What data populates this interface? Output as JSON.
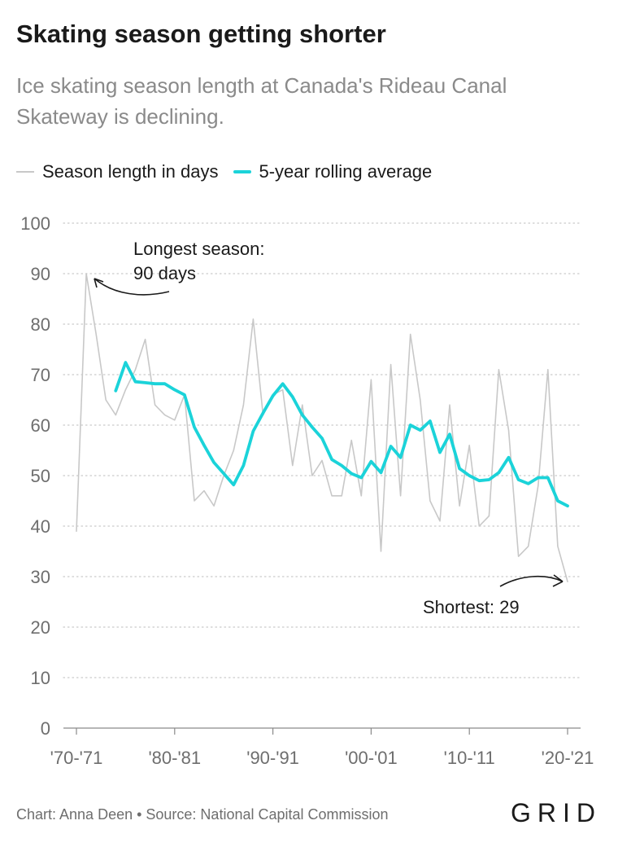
{
  "title": "Skating season getting shorter",
  "subtitle": "Ice skating season length at Canada's Rideau Canal Skateway is declining.",
  "legend": {
    "raw_label": "Season length in days",
    "avg_label": "5-year rolling average"
  },
  "annotations": {
    "longest_line1": "Longest season:",
    "longest_line2": "90 days",
    "shortest": "Shortest: 29"
  },
  "footer": "Chart: Anna Deen • Source: National Capital Commission",
  "logo": "GRID",
  "colors": {
    "raw": "#c8c8c8",
    "avg": "#1bd3d9",
    "grid": "#c9c9c9",
    "text": "#6e6e6e"
  },
  "chart_data": {
    "type": "line",
    "x_start": 1970,
    "x_tick_labels": [
      "'70-'71",
      "'80-'81",
      "'90-'91",
      "'00-'01",
      "'10-'11",
      "'20-'21"
    ],
    "x_tick_years": [
      1970,
      1980,
      1990,
      2000,
      2010,
      2020
    ],
    "ylim": [
      0,
      100
    ],
    "y_ticks": [
      0,
      10,
      20,
      30,
      40,
      50,
      60,
      70,
      80,
      90,
      100
    ],
    "grid": true,
    "legend_position": "top",
    "series": [
      {
        "name": "Season length in days",
        "values": [
          39,
          90,
          78,
          65,
          62,
          67,
          71,
          77,
          64,
          62,
          61,
          66,
          45,
          47,
          44,
          50,
          55,
          64,
          81,
          62,
          66,
          67,
          52,
          64,
          50,
          53,
          46,
          46,
          57,
          46,
          69,
          35,
          72,
          46,
          78,
          65,
          45,
          41,
          64,
          44,
          56,
          40,
          42,
          71,
          59,
          34,
          36,
          48,
          71,
          36,
          29
        ]
      },
      {
        "name": "5-year rolling average",
        "start_index": 4,
        "values": [
          66.8,
          72.4,
          68.6,
          68.4,
          68.2,
          68.2,
          67,
          66,
          59.6,
          56,
          52.6,
          50.4,
          48.2,
          52,
          58.8,
          62.4,
          65.8,
          68.2,
          65.6,
          62,
          59.6,
          57.4,
          53.2,
          52,
          50.4,
          49.6,
          52.8,
          50.6,
          55.8,
          53.6,
          60,
          59,
          60.8,
          54.6,
          58.2,
          51.4,
          50,
          49,
          49.2,
          50.6,
          53.6,
          49.2,
          48.4,
          49.6,
          49.6,
          45,
          44
        ]
      }
    ]
  }
}
